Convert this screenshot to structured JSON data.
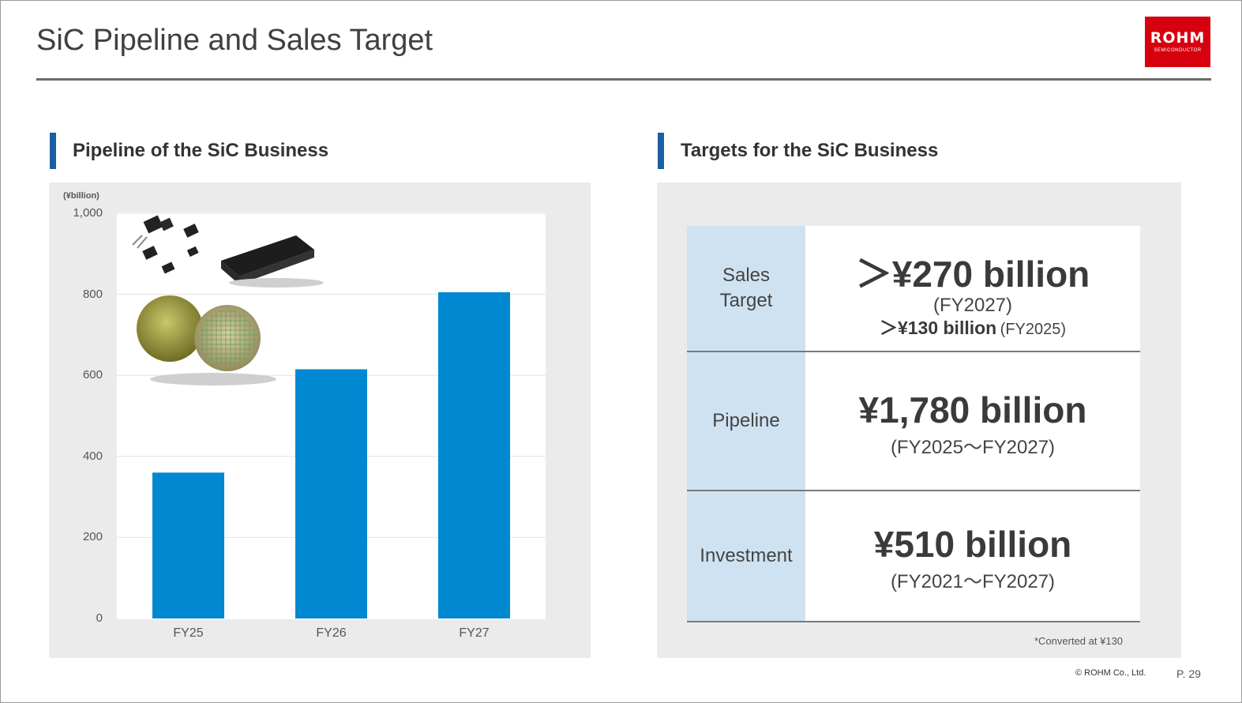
{
  "slide": {
    "title": "SiC Pipeline and Sales Target",
    "logo_text": "ROHM",
    "logo_sub": "SEMICONDUCTOR",
    "copyright": "© ROHM Co., Ltd.",
    "page": "P. 29",
    "colors": {
      "accent": "#1a5fa2",
      "bar": "#0088d1",
      "logo": "#d7000f",
      "label_cell": "#cfe2f1"
    }
  },
  "left": {
    "section_title": "Pipeline of the SiC Business"
  },
  "right": {
    "section_title": "Targets for the SiC Business",
    "rows": [
      {
        "label_line1": "Sales",
        "label_line2": "Target",
        "value": "＞¥270 billion",
        "period": "(FY2027)",
        "extra_value": "＞¥130 billion",
        "extra_period": "(FY2025)"
      },
      {
        "label_line1": "Pipeline",
        "value": "¥1,780 billion",
        "period": "(FY2025～FY2027)"
      },
      {
        "label_line1": "Investment",
        "value": "¥510 billion",
        "period": "(FY2021～FY2027)"
      }
    ],
    "note": "*Converted at ¥130"
  },
  "chart_data": {
    "type": "bar",
    "title": "",
    "ylabel": "(¥billion)",
    "categories": [
      "FY25",
      "FY26",
      "FY27"
    ],
    "values": [
      360,
      615,
      805
    ],
    "ylim": [
      0,
      1000
    ],
    "yticks": [
      "0",
      "200",
      "400",
      "600",
      "800",
      "1,000"
    ],
    "grid": true
  }
}
